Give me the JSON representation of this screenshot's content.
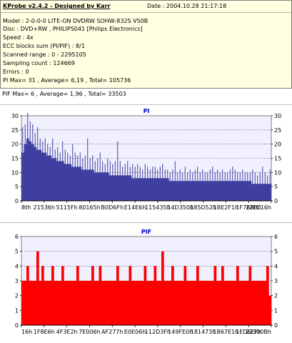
{
  "header": {
    "title": "KProbe v2.4.2 - Designed by Karr",
    "date": "Date : 2004.10.28 21:17:18"
  },
  "info_lines": [
    "Model : 2-0-0-0 LITE-ON DVDRW SOHW-832S  VS0B",
    "Disc : DVD+RW , PHILIPS041 [Philips Electronics]",
    "Speed : 4x",
    "ECC blocks sum (PI/PIF) : 8/1",
    "Scanned range : 0 - 2295105",
    "Sampling count : 124669",
    "Errors : 0",
    "PI Max= 31 , Average= 6,19 , Total= 105736",
    "PIF Max= 6 , Average= 1,96 , Total= 33503"
  ],
  "colors": {
    "pi_fill": "#3f3fa0",
    "pif_fill": "#ff0000",
    "title_color": "#0000c0",
    "plot_bg": "#f0f0ff"
  },
  "chart_data": [
    {
      "type": "area",
      "title": "PI",
      "ylim": [
        0,
        30
      ],
      "yticks": [
        0,
        5,
        10,
        15,
        20,
        25,
        30
      ],
      "xtick_labels": [
        "8th",
        "21536h",
        "5115Fh",
        "80165h",
        "B0D6Fh",
        "E14E6h",
        "115435h",
        "14D350h",
        "185D52h",
        "1BE2F1h",
        "1F768Bh",
        "22FC16h"
      ],
      "grid": true,
      "series": [
        {
          "values": [
            17,
            20,
            22,
            21,
            20,
            19,
            18,
            18,
            17,
            17,
            16,
            16,
            15,
            15,
            14,
            14,
            14,
            13,
            13,
            13,
            12,
            12,
            12,
            12,
            11,
            11,
            11,
            11,
            11,
            10,
            10,
            10,
            10,
            10,
            10,
            9,
            9,
            9,
            9,
            9,
            9,
            9,
            9,
            9,
            8,
            8,
            8,
            8,
            8,
            8,
            8,
            8,
            8,
            8,
            8,
            8,
            8,
            8,
            8,
            7,
            7,
            7,
            7,
            7,
            7,
            7,
            7,
            7,
            7,
            7,
            7,
            7,
            7,
            7,
            7,
            7,
            7,
            7,
            7,
            7,
            7,
            7,
            7,
            7,
            7,
            7,
            7,
            7,
            7,
            7,
            7,
            7,
            6,
            6,
            6,
            6,
            6,
            6,
            6,
            6
          ],
          "peaks": [
            26,
            27,
            31,
            28,
            27,
            24,
            26,
            22,
            21,
            22,
            20,
            19,
            22,
            18,
            19,
            17,
            21,
            18,
            17,
            16,
            20,
            17,
            16,
            17,
            15,
            16,
            22,
            15,
            16,
            14,
            15,
            17,
            14,
            13,
            15,
            14,
            13,
            14,
            21,
            14,
            12,
            13,
            14,
            12,
            13,
            12,
            13,
            12,
            11,
            13,
            12,
            11,
            12,
            12,
            11,
            12,
            13,
            11,
            11,
            10,
            11,
            14,
            10,
            11,
            10,
            12,
            10,
            11,
            10,
            11,
            12,
            10,
            11,
            10,
            10,
            11,
            12,
            10,
            11,
            10,
            11,
            10,
            10,
            11,
            12,
            11,
            10,
            10,
            11,
            10,
            10,
            10,
            11,
            10,
            9,
            10,
            12,
            10,
            9,
            11
          ]
        }
      ]
    },
    {
      "type": "bar",
      "title": "PIF",
      "ylim": [
        0,
        6
      ],
      "yticks": [
        0,
        1,
        2,
        3,
        4,
        5,
        6
      ],
      "xtick_labels": [
        "16h",
        "1F8E6h",
        "4F3E2h",
        "7E006h",
        "AF277h",
        "E0E06h",
        "112D3Fh",
        "149FE0h",
        "181473h",
        "1B67E1h",
        "1ED6EFh",
        "22300Bh"
      ],
      "grid": true,
      "series": [
        {
          "values": [
            3,
            3,
            4,
            3,
            3,
            3,
            5,
            3,
            4,
            3,
            3,
            3,
            4,
            3,
            3,
            3,
            4,
            3,
            3,
            3,
            3,
            3,
            4,
            3,
            3,
            3,
            3,
            3,
            4,
            3,
            3,
            4,
            3,
            3,
            3,
            3,
            3,
            3,
            4,
            3,
            3,
            3,
            3,
            4,
            3,
            3,
            3,
            3,
            3,
            4,
            3,
            3,
            3,
            4,
            3,
            3,
            5,
            3,
            3,
            3,
            4,
            3,
            3,
            3,
            3,
            4,
            3,
            3,
            3,
            3,
            4,
            3,
            3,
            3,
            3,
            3,
            3,
            4,
            3,
            3,
            4,
            3,
            3,
            3,
            3,
            3,
            4,
            3,
            3,
            3,
            3,
            4,
            3,
            3,
            3,
            3,
            3,
            3,
            4,
            2
          ]
        }
      ]
    }
  ]
}
